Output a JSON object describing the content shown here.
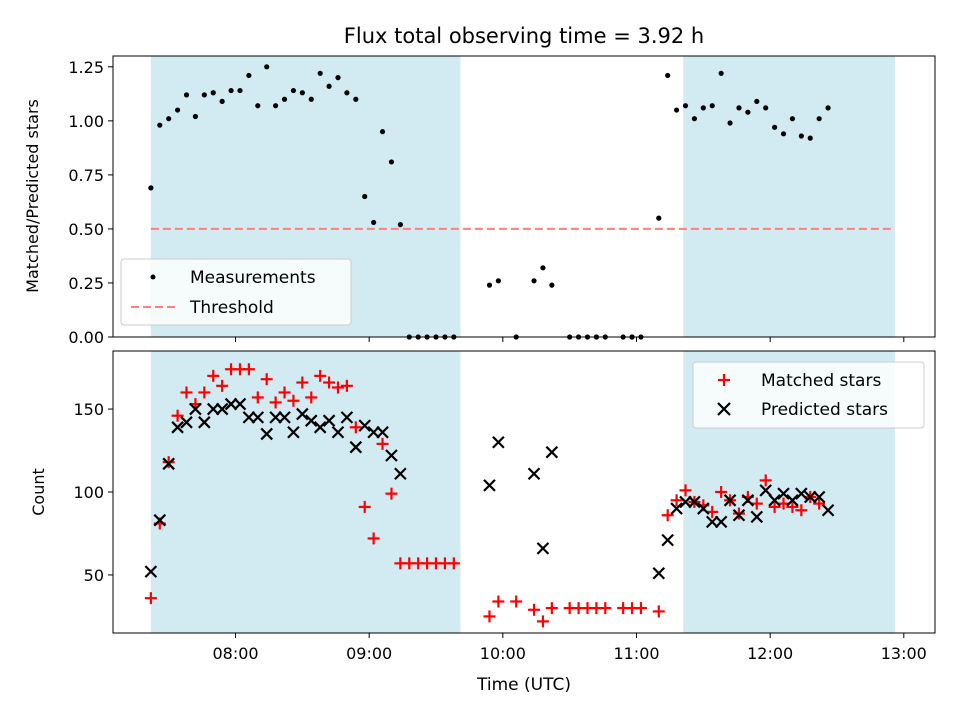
{
  "figure": {
    "title": "Flux total observing time = 3.92 h",
    "xlabel": "Time (UTC)"
  },
  "colors": {
    "shade": "#add8e6",
    "matched": "#ff0000",
    "predicted": "#000000",
    "threshold": "#ff7f7f",
    "measurements": "#000000"
  },
  "chart_data": [
    {
      "type": "scatter",
      "panel": "top",
      "ylabel": "Matched/Predicted stars",
      "ylim": [
        0,
        1.3
      ],
      "yticks": [
        0.0,
        0.25,
        0.5,
        0.75,
        1.0,
        1.25
      ],
      "ytick_labels": [
        "0.00",
        "0.25",
        "0.50",
        "0.75",
        "1.00",
        "1.25"
      ],
      "xlim": [
        "07:05",
        "13:14"
      ],
      "xticks": [
        "08:00",
        "09:00",
        "10:00",
        "11:00",
        "12:00",
        "13:00"
      ],
      "xtick_labels": [
        "08:00",
        "09:00",
        "10:00",
        "11:00",
        "12:00",
        "13:00"
      ],
      "legend": {
        "position": "lower-left",
        "entries": [
          "Measurements",
          "Threshold"
        ]
      },
      "shaded_intervals": [
        [
          "07:22",
          "09:41"
        ],
        [
          "11:21",
          "12:56"
        ]
      ],
      "threshold": 0.5,
      "series": [
        {
          "name": "Measurements",
          "x": [
            "07:22",
            "07:26",
            "07:30",
            "07:34",
            "07:38",
            "07:42",
            "07:46",
            "07:50",
            "07:54",
            "07:58",
            "08:02",
            "08:06",
            "08:10",
            "08:14",
            "08:18",
            "08:22",
            "08:26",
            "08:30",
            "08:34",
            "08:38",
            "08:42",
            "08:46",
            "08:50",
            "08:54",
            "08:58",
            "09:02",
            "09:06",
            "09:10",
            "09:14",
            "09:18",
            "09:22",
            "09:26",
            "09:30",
            "09:34",
            "09:38",
            "09:42",
            "09:46",
            "09:50",
            "09:54",
            "09:58",
            "10:02",
            "10:06",
            "10:10",
            "10:14",
            "10:18",
            "10:22",
            "10:26",
            "10:30",
            "10:34",
            "10:38",
            "10:42",
            "10:46",
            "10:50",
            "10:54",
            "10:58",
            "11:02",
            "11:06",
            "11:10",
            "11:14",
            "11:18",
            "11:22",
            "11:26",
            "11:30",
            "11:34",
            "11:38",
            "11:42",
            "11:46",
            "11:50",
            "11:54",
            "11:58",
            "12:02",
            "12:06",
            "12:10",
            "12:14",
            "12:18",
            "12:22",
            "12:26",
            "12:30",
            "12:34",
            "12:38",
            "12:42",
            "12:46",
            "12:50",
            "12:54",
            "12:58"
          ],
          "y": [
            0.69,
            0.98,
            1.01,
            1.05,
            1.12,
            1.02,
            1.12,
            1.13,
            1.09,
            1.14,
            1.14,
            1.21,
            1.07,
            1.25,
            1.07,
            1.1,
            1.14,
            1.13,
            1.1,
            1.22,
            1.16,
            1.2,
            1.13,
            1.1,
            0.65,
            0.53,
            0.95,
            0.81,
            0.52,
            0.0,
            0.0,
            0.0,
            0.0,
            0.0,
            0.0,
            null,
            null,
            null,
            0.24,
            0.26,
            null,
            0.0,
            null,
            0.26,
            0.32,
            0.24,
            null,
            0.0,
            0.0,
            0.0,
            0.0,
            0.0,
            null,
            0.0,
            0.0,
            0.0,
            null,
            0.55,
            1.21,
            1.05,
            1.07,
            1.01,
            1.06,
            1.07,
            1.22,
            0.99,
            1.06,
            1.04,
            1.09,
            1.06,
            0.97,
            0.94,
            1.01,
            0.93,
            0.92,
            1.01,
            1.06,
            null,
            null,
            null,
            null,
            null,
            null,
            null,
            null
          ]
        }
      ]
    },
    {
      "type": "scatter",
      "panel": "bottom",
      "ylabel": "Count",
      "ylim": [
        15,
        185
      ],
      "yticks": [
        50,
        100,
        150
      ],
      "ytick_labels": [
        "50",
        "100",
        "150"
      ],
      "xlim": [
        "07:05",
        "13:14"
      ],
      "xticks": [
        "08:00",
        "09:00",
        "10:00",
        "11:00",
        "12:00",
        "13:00"
      ],
      "xtick_labels": [
        "08:00",
        "09:00",
        "10:00",
        "11:00",
        "12:00",
        "13:00"
      ],
      "legend": {
        "position": "top-right",
        "entries": [
          "Matched stars",
          "Predicted stars"
        ]
      },
      "shaded_intervals": [
        [
          "07:22",
          "09:41"
        ],
        [
          "11:21",
          "12:56"
        ]
      ],
      "series": [
        {
          "name": "Matched stars",
          "marker": "+",
          "x": [
            "07:22",
            "07:26",
            "07:30",
            "07:34",
            "07:38",
            "07:42",
            "07:46",
            "07:50",
            "07:54",
            "07:58",
            "08:02",
            "08:06",
            "08:10",
            "08:14",
            "08:18",
            "08:22",
            "08:26",
            "08:30",
            "08:34",
            "08:38",
            "08:42",
            "08:46",
            "08:50",
            "08:54",
            "08:58",
            "09:02",
            "09:06",
            "09:10",
            "09:14",
            "09:18",
            "09:22",
            "09:26",
            "09:30",
            "09:34",
            "09:38",
            "09:42",
            "09:46",
            "09:50",
            "09:54",
            "09:58",
            "10:02",
            "10:06",
            "10:10",
            "10:14",
            "10:18",
            "10:22",
            "10:26",
            "10:30",
            "10:34",
            "10:38",
            "10:42",
            "10:46",
            "10:50",
            "10:54",
            "10:58",
            "11:02",
            "11:06",
            "11:10",
            "11:14",
            "11:18",
            "11:22",
            "11:26",
            "11:30",
            "11:34",
            "11:38",
            "11:42",
            "11:46",
            "11:50",
            "11:54",
            "11:58",
            "12:02",
            "12:06",
            "12:10",
            "12:14",
            "12:18",
            "12:22",
            "12:26",
            "12:30",
            "12:34",
            "12:38",
            "12:42",
            "12:46",
            "12:50",
            "12:54",
            "12:58"
          ],
          "y": [
            36,
            81,
            118,
            146,
            160,
            153,
            160,
            170,
            164,
            174,
            174,
            174,
            157,
            168,
            154,
            160,
            155,
            166,
            157,
            170,
            166,
            163,
            164,
            139,
            91,
            72,
            129,
            99,
            57,
            57,
            57,
            57,
            57,
            57,
            57,
            null,
            null,
            null,
            25,
            34,
            null,
            34,
            null,
            29,
            22,
            30,
            null,
            30,
            30,
            30,
            30,
            30,
            null,
            30,
            30,
            30,
            null,
            28,
            86,
            95,
            101,
            94,
            92,
            88,
            100,
            95,
            87,
            97,
            93,
            107,
            91,
            93,
            91,
            89,
            97,
            93,
            null,
            null,
            null,
            null,
            null,
            null,
            null,
            null,
            null
          ]
        },
        {
          "name": "Predicted stars",
          "marker": "x",
          "x": [
            "07:22",
            "07:26",
            "07:30",
            "07:34",
            "07:38",
            "07:42",
            "07:46",
            "07:50",
            "07:54",
            "07:58",
            "08:02",
            "08:06",
            "08:10",
            "08:14",
            "08:18",
            "08:22",
            "08:26",
            "08:30",
            "08:34",
            "08:38",
            "08:42",
            "08:46",
            "08:50",
            "08:54",
            "08:58",
            "09:02",
            "09:06",
            "09:10",
            "09:14",
            "09:18",
            "09:22",
            "09:26",
            "09:30",
            "09:34",
            "09:38",
            "09:42",
            "09:46",
            "09:50",
            "09:54",
            "09:58",
            "10:02",
            "10:06",
            "10:10",
            "10:14",
            "10:18",
            "10:22",
            "10:26",
            "10:30",
            "10:34",
            "10:38",
            "10:42",
            "10:46",
            "10:50",
            "10:54",
            "10:58",
            "11:02",
            "11:06",
            "11:10",
            "11:14",
            "11:18",
            "11:22",
            "11:26",
            "11:30",
            "11:34",
            "11:38",
            "11:42",
            "11:46",
            "11:50",
            "11:54",
            "11:58",
            "12:02",
            "12:06",
            "12:10",
            "12:14",
            "12:18",
            "12:22",
            "12:26",
            "12:30",
            "12:34",
            "12:38",
            "12:42",
            "12:46",
            "12:50",
            "12:54",
            "12:58"
          ],
          "y": [
            52,
            83,
            117,
            139,
            142,
            150,
            142,
            150,
            150,
            153,
            153,
            145,
            145,
            135,
            145,
            145,
            136,
            147,
            143,
            139,
            143,
            136,
            145,
            127,
            140,
            136,
            136,
            122,
            111,
            null,
            null,
            null,
            null,
            null,
            null,
            null,
            null,
            null,
            104,
            130,
            null,
            null,
            null,
            111,
            66,
            124,
            null,
            null,
            null,
            null,
            null,
            null,
            null,
            null,
            null,
            null,
            null,
            51,
            71,
            90,
            94,
            94,
            90,
            82,
            82,
            95,
            86,
            95,
            85,
            101,
            95,
            99,
            95,
            99,
            97,
            97,
            89,
            null,
            null,
            null,
            null,
            null,
            null,
            null,
            null
          ]
        }
      ]
    }
  ]
}
